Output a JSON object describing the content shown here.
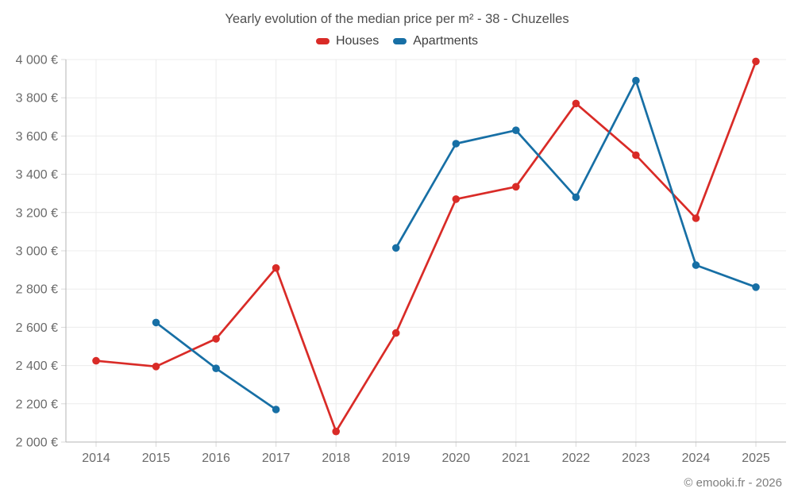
{
  "title": "Yearly evolution of the median price per m² - 38 - Chuzelles",
  "footer": "© emooki.fr - 2026",
  "legend": [
    {
      "id": "houses",
      "label": "Houses",
      "color": "#d92b27"
    },
    {
      "id": "apartments",
      "label": "Apartments",
      "color": "#176fa5"
    }
  ],
  "chart_data": {
    "type": "line",
    "title": "Yearly evolution of the median price per m² - 38 - Chuzelles",
    "x": [
      "2014",
      "2015",
      "2016",
      "2017",
      "2018",
      "2019",
      "2020",
      "2021",
      "2022",
      "2023",
      "2024",
      "2025"
    ],
    "series": [
      {
        "name": "Houses",
        "color": "#d92b27",
        "values": [
          2425,
          2395,
          2540,
          2910,
          2055,
          2570,
          3270,
          3335,
          3770,
          3500,
          3170,
          3990
        ]
      },
      {
        "name": "Apartments",
        "color": "#176fa5",
        "values": [
          null,
          2625,
          2385,
          2170,
          null,
          3015,
          3560,
          3630,
          3280,
          3890,
          2925,
          2810
        ]
      }
    ],
    "ylabel": "",
    "xlabel": "",
    "ylim": [
      2000,
      4000
    ],
    "ytick_step": 200,
    "ytick_suffix": " €",
    "grid": true,
    "legend_position": "top",
    "colors": {
      "grid": "#ececec",
      "axis": "#b5b5b5",
      "tick": "#d9d9d9",
      "label": "#6b6b6b"
    }
  }
}
